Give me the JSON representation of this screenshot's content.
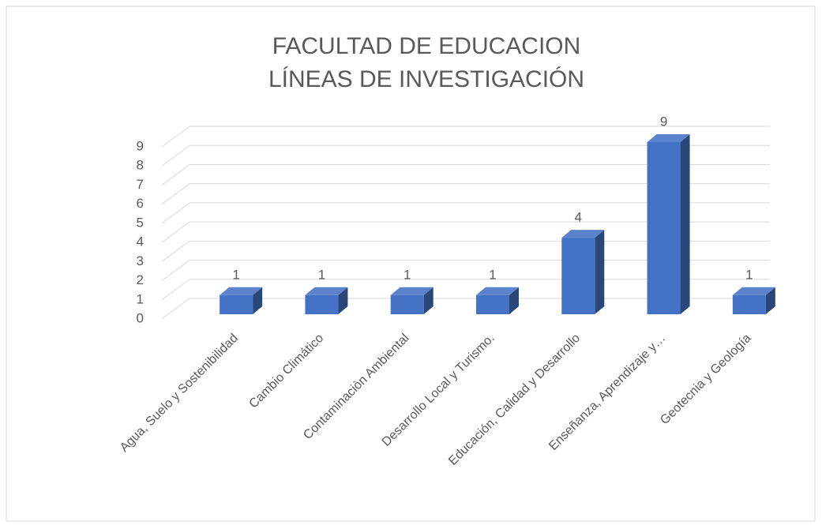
{
  "chart_data": {
    "type": "bar3d",
    "title": [
      "FACULTAD DE EDUCACION",
      "LÍNEAS DE INVESTIGACIÓN"
    ],
    "categories": [
      "Agua, Suelo y Sostenibilidad",
      "Cambio Climático",
      "Contaminaciòn Ambiental",
      "Desarrollo Local y Turismo.",
      "Educación, Calidad y Desarrollo",
      "Enseñanza, Aprendizaje y…",
      "Geotecnia y Geología"
    ],
    "values": [
      1,
      1,
      1,
      1,
      4,
      9,
      1
    ],
    "color": "#4472c4",
    "ylim": [
      0,
      9
    ],
    "yticks": [
      0,
      1,
      2,
      3,
      4,
      5,
      6,
      7,
      8,
      9
    ],
    "grid": true
  }
}
